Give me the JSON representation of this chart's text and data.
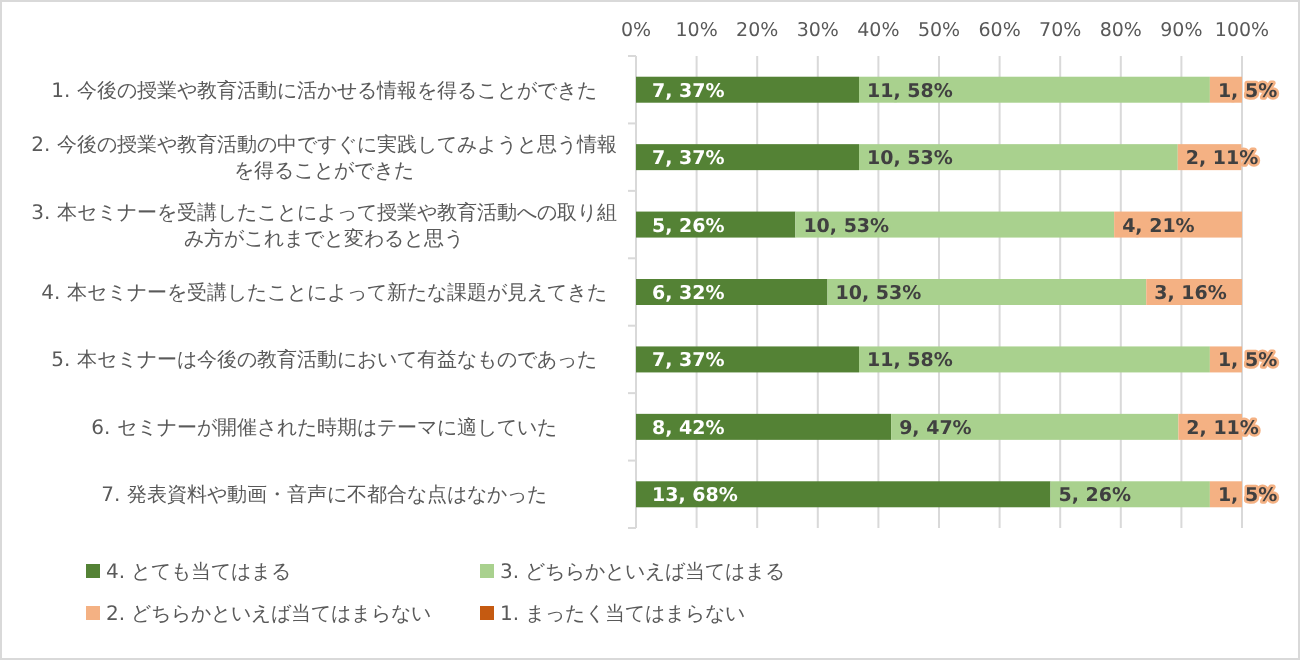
{
  "chart_data": {
    "type": "bar",
    "orientation": "horizontal",
    "stacked": true,
    "categories": [
      "1. 今後の授業や教育活動に活かせる情報を得ることができた",
      "2. 今後の授業や教育活動の中ですぐに実践してみようと思う情報を得ることができた",
      "3. 本セミナーを受講したことによって授業や教育活動への取り組み方がこれまでと変わると思う",
      "4. 本セミナーを受講したことによって新たな課題が見えてきた",
      "5. 本セミナーは今後の教育活動において有益なものであった",
      "6. セミナーが開催された時期はテーマに適していた",
      "7. 発表資料や動画・音声に不都合な点はなかった"
    ],
    "series": [
      {
        "name": "4. とても当てはまる",
        "color": "#548235",
        "values": [
          36.8,
          36.8,
          26.3,
          31.6,
          36.8,
          42.1,
          68.4
        ],
        "value_labels": [
          "7, 37%",
          "7, 37%",
          "5, 26%",
          "6, 32%",
          "7, 37%",
          "8, 42%",
          "13, 68%"
        ]
      },
      {
        "name": "3. どちらかといえば当てはまる",
        "color": "#a9d18e",
        "values": [
          57.9,
          52.6,
          52.6,
          52.6,
          57.9,
          47.4,
          26.3
        ],
        "value_labels": [
          "11, 58%",
          "10, 53%",
          "10, 53%",
          "10, 53%",
          "11, 58%",
          "9, 47%",
          "5, 26%"
        ]
      },
      {
        "name": "2. どちらかといえば当てはまらない",
        "color": "#f4b183",
        "values": [
          5.3,
          10.5,
          21.1,
          15.8,
          5.3,
          10.5,
          5.3
        ],
        "value_labels": [
          "1, 5%",
          "2, 11%",
          "4, 21%",
          "3, 16%",
          "1, 5%",
          "2, 11%",
          "1, 5%"
        ]
      },
      {
        "name": "1. まったく当てはまらない",
        "color": "#c55a11",
        "values": [
          0,
          0,
          0,
          0,
          0,
          0,
          0
        ],
        "value_labels": [
          null,
          null,
          null,
          null,
          null,
          null,
          null
        ]
      }
    ],
    "xlim": [
      0,
      100
    ],
    "xticks": [
      {
        "value": 0,
        "label": "0%"
      },
      {
        "value": 10,
        "label": "10%"
      },
      {
        "value": 20,
        "label": "20%"
      },
      {
        "value": 30,
        "label": "30%"
      },
      {
        "value": 40,
        "label": "40%"
      },
      {
        "value": 50,
        "label": "50%"
      },
      {
        "value": 60,
        "label": "60%"
      },
      {
        "value": 70,
        "label": "70%"
      },
      {
        "value": 80,
        "label": "80%"
      },
      {
        "value": 90,
        "label": "90%"
      },
      {
        "value": 100,
        "label": "100%"
      }
    ],
    "grid": "x",
    "legend": "bottom"
  }
}
